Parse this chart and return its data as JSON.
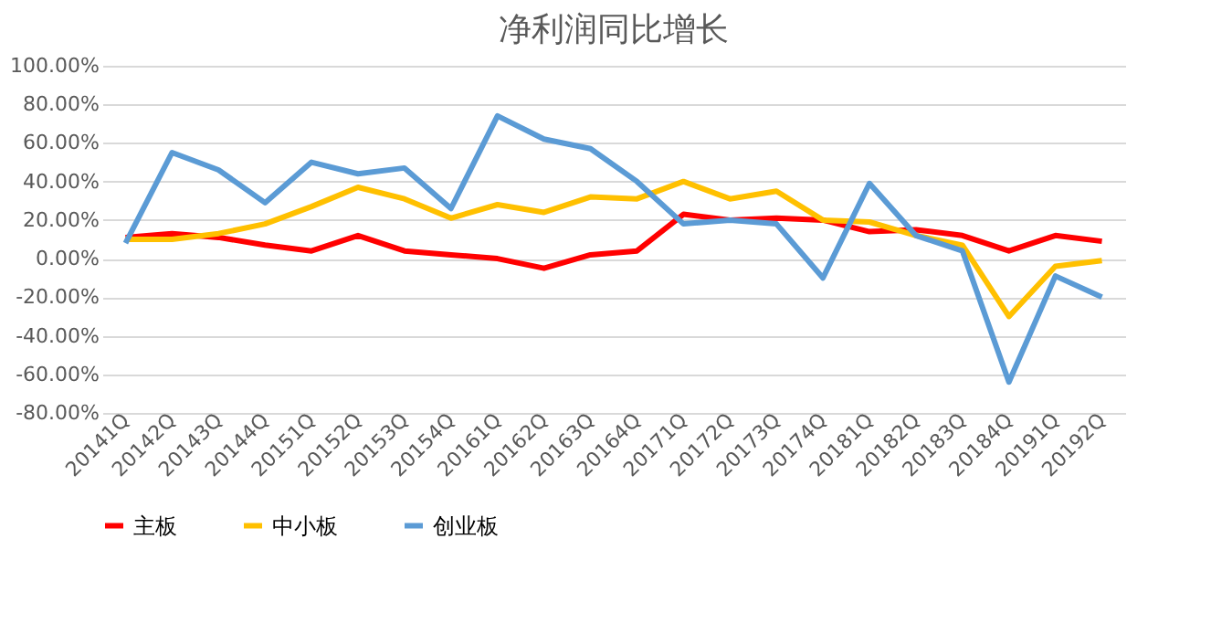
{
  "chart_data": {
    "type": "line",
    "title": "净利润同比增长",
    "categories": [
      "20141Q",
      "20142Q",
      "20143Q",
      "20144Q",
      "20151Q",
      "20152Q",
      "20153Q",
      "20154Q",
      "20161Q",
      "20162Q",
      "20163Q",
      "20164Q",
      "20171Q",
      "20172Q",
      "20173Q",
      "20174Q",
      "20181Q",
      "20182Q",
      "20183Q",
      "20184Q",
      "20191Q",
      "20192Q"
    ],
    "series": [
      {
        "name": "主板",
        "color": "#ff0000",
        "values": [
          11,
          13,
          11,
          7,
          4,
          12,
          4,
          2,
          0,
          -5,
          2,
          4,
          23,
          20,
          21,
          20,
          14,
          15,
          12,
          4,
          12,
          9
        ]
      },
      {
        "name": "中小板",
        "color": "#ffc000",
        "values": [
          10,
          10,
          13,
          18,
          27,
          37,
          31,
          21,
          28,
          24,
          32,
          31,
          40,
          31,
          35,
          20,
          19,
          12,
          7,
          -30,
          -4,
          -1
        ]
      },
      {
        "name": "创业板",
        "color": "#5b9bd5",
        "values": [
          8,
          55,
          46,
          29,
          50,
          44,
          47,
          26,
          74,
          62,
          57,
          40,
          18,
          20,
          18,
          -10,
          39,
          12,
          4,
          -64,
          -9,
          -20
        ]
      }
    ],
    "ylim": [
      -80,
      100
    ],
    "yticks": [
      {
        "value": -80,
        "label": "-80.00%"
      },
      {
        "value": -60,
        "label": "-60.00%"
      },
      {
        "value": -40,
        "label": "-40.00%"
      },
      {
        "value": -20,
        "label": "-20.00%"
      },
      {
        "value": 0,
        "label": "0.00%"
      },
      {
        "value": 20,
        "label": "20.00%"
      },
      {
        "value": 40,
        "label": "40.00%"
      },
      {
        "value": 60,
        "label": "60.00%"
      },
      {
        "value": 80,
        "label": "80.00%"
      },
      {
        "value": 100,
        "label": "100.00%"
      }
    ],
    "grid": "y",
    "legend": "bottom",
    "line_style": "solid"
  }
}
